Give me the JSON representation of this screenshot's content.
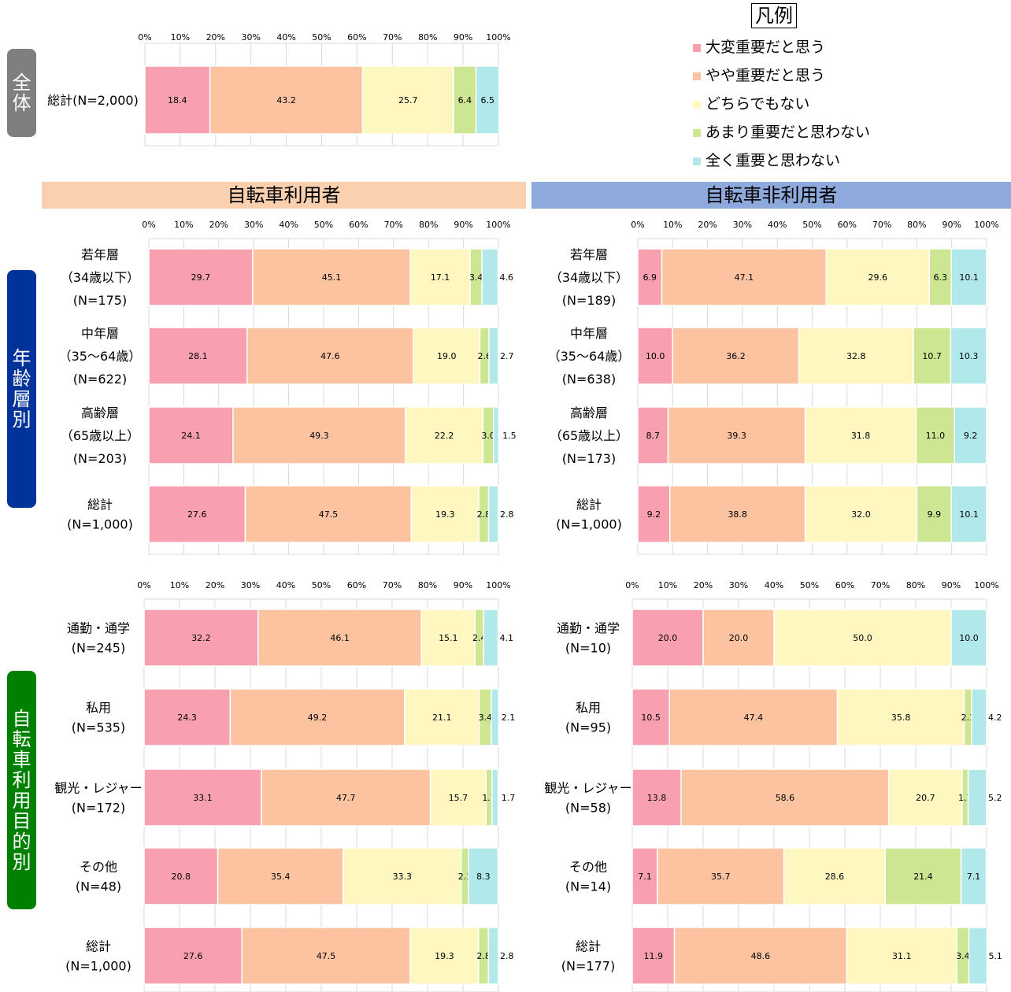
{
  "legend": {
    "title": "凡例",
    "items": [
      {
        "label": "大変重要だと思う",
        "color": "#F8A0B0"
      },
      {
        "label": "やや重要だと思う",
        "color": "#FCC3A1"
      },
      {
        "label": "どちらでもない",
        "color": "#FFF6C0"
      },
      {
        "label": "あまり重要だと思わない",
        "color": "#CDE692"
      },
      {
        "label": "全く重要と思わない",
        "color": "#B1E9EB"
      }
    ]
  },
  "side_labels": {
    "overall": "全体",
    "age": "年齢層別",
    "purpose": "自転車利用目的別"
  },
  "bands": {
    "users": "自転車利用者",
    "non_users": "自転車非利用者"
  },
  "chart_data": [
    {
      "type": "bar",
      "orientation": "horizontal",
      "stacked": true,
      "xlim": [
        0,
        100
      ],
      "ticks": [
        "0%",
        "10%",
        "20%",
        "30%",
        "40%",
        "50%",
        "60%",
        "70%",
        "80%",
        "90%",
        "100%"
      ],
      "categories": [
        "総計(N=2,000)"
      ],
      "series": [
        {
          "name": "大変重要だと思う",
          "values": [
            18.4
          ]
        },
        {
          "name": "やや重要だと思う",
          "values": [
            43.2
          ]
        },
        {
          "name": "どちらでもない",
          "values": [
            25.7
          ]
        },
        {
          "name": "あまり重要だと思わない",
          "values": [
            6.4
          ]
        },
        {
          "name": "全く重要と思わない",
          "values": [
            6.5
          ]
        }
      ]
    },
    {
      "type": "bar",
      "orientation": "horizontal",
      "stacked": true,
      "xlim": [
        0,
        100
      ],
      "ticks": [
        "0%",
        "10%",
        "20%",
        "30%",
        "40%",
        "50%",
        "60%",
        "70%",
        "80%",
        "90%",
        "100%"
      ],
      "categories": [
        "若年層\n（34歳以下）\n(N=175)",
        "中年層\n（35～64歳）\n(N=622)",
        "高齢層\n（65歳以上）\n(N=203)",
        "総計\n(N=1,000)"
      ],
      "series": [
        {
          "name": "大変重要だと思う",
          "values": [
            29.7,
            28.1,
            24.1,
            27.6
          ]
        },
        {
          "name": "やや重要だと思う",
          "values": [
            45.1,
            47.6,
            49.3,
            47.5
          ]
        },
        {
          "name": "どちらでもない",
          "values": [
            17.1,
            19.0,
            22.2,
            19.3
          ]
        },
        {
          "name": "あまり重要だと思わない",
          "values": [
            3.4,
            2.6,
            3.0,
            2.8
          ]
        },
        {
          "name": "全く重要と思わない",
          "values": [
            4.6,
            2.7,
            1.5,
            2.8
          ]
        }
      ]
    },
    {
      "type": "bar",
      "orientation": "horizontal",
      "stacked": true,
      "xlim": [
        0,
        100
      ],
      "ticks": [
        "0%",
        "10%",
        "20%",
        "30%",
        "40%",
        "50%",
        "60%",
        "70%",
        "80%",
        "90%",
        "100%"
      ],
      "categories": [
        "若年層\n（34歳以下）\n(N=189)",
        "中年層\n（35～64歳）\n(N=638)",
        "高齢層\n（65歳以上）\n(N=173)",
        "総計\n(N=1,000)"
      ],
      "series": [
        {
          "name": "大変重要だと思う",
          "values": [
            6.9,
            10.0,
            8.7,
            9.2
          ]
        },
        {
          "name": "やや重要だと思う",
          "values": [
            47.1,
            36.2,
            39.3,
            38.8
          ]
        },
        {
          "name": "どちらでもない",
          "values": [
            29.6,
            32.8,
            31.8,
            32.0
          ]
        },
        {
          "name": "あまり重要だと思わない",
          "values": [
            6.3,
            10.7,
            11.0,
            9.9
          ]
        },
        {
          "name": "全く重要と思わない",
          "values": [
            10.1,
            10.3,
            9.2,
            10.1
          ]
        }
      ]
    },
    {
      "type": "bar",
      "orientation": "horizontal",
      "stacked": true,
      "xlim": [
        0,
        100
      ],
      "ticks": [
        "0%",
        "10%",
        "20%",
        "30%",
        "40%",
        "50%",
        "60%",
        "70%",
        "80%",
        "90%",
        "100%"
      ],
      "categories": [
        "通勤・通学\n(N=245)",
        "私用\n(N=535)",
        "観光・レジャー\n(N=172)",
        "その他\n(N=48)",
        "総計\n(N=1,000)"
      ],
      "series": [
        {
          "name": "大変重要だと思う",
          "values": [
            32.2,
            24.3,
            33.1,
            20.8,
            27.6
          ]
        },
        {
          "name": "やや重要だと思う",
          "values": [
            46.1,
            49.2,
            47.7,
            35.4,
            47.5
          ]
        },
        {
          "name": "どちらでもない",
          "values": [
            15.1,
            21.1,
            15.7,
            33.3,
            19.3
          ]
        },
        {
          "name": "あまり重要だと思わない",
          "values": [
            2.4,
            3.4,
            1.7,
            2.1,
            2.8
          ]
        },
        {
          "name": "全く重要と思わない",
          "values": [
            4.1,
            2.1,
            1.7,
            8.3,
            2.8
          ]
        }
      ]
    },
    {
      "type": "bar",
      "orientation": "horizontal",
      "stacked": true,
      "xlim": [
        0,
        100
      ],
      "ticks": [
        "0%",
        "10%",
        "20%",
        "30%",
        "40%",
        "50%",
        "60%",
        "70%",
        "80%",
        "90%",
        "100%"
      ],
      "categories": [
        "通勤・通学\n(N=10)",
        "私用\n(N=95)",
        "観光・レジャー\n(N=58)",
        "その他\n(N=14)",
        "総計\n(N=177)"
      ],
      "series": [
        {
          "name": "大変重要だと思う",
          "values": [
            20.0,
            10.5,
            13.8,
            7.1,
            11.9
          ]
        },
        {
          "name": "やや重要だと思う",
          "values": [
            20.0,
            47.4,
            58.6,
            35.7,
            48.6
          ]
        },
        {
          "name": "どちらでもない",
          "values": [
            50.0,
            35.8,
            20.7,
            28.6,
            31.1
          ]
        },
        {
          "name": "あまり重要だと思わない",
          "values": [
            0,
            2.1,
            1.7,
            21.4,
            3.4
          ]
        },
        {
          "name": "全く重要と思わない",
          "values": [
            10.0,
            4.2,
            5.2,
            7.1,
            5.1
          ]
        }
      ]
    }
  ]
}
